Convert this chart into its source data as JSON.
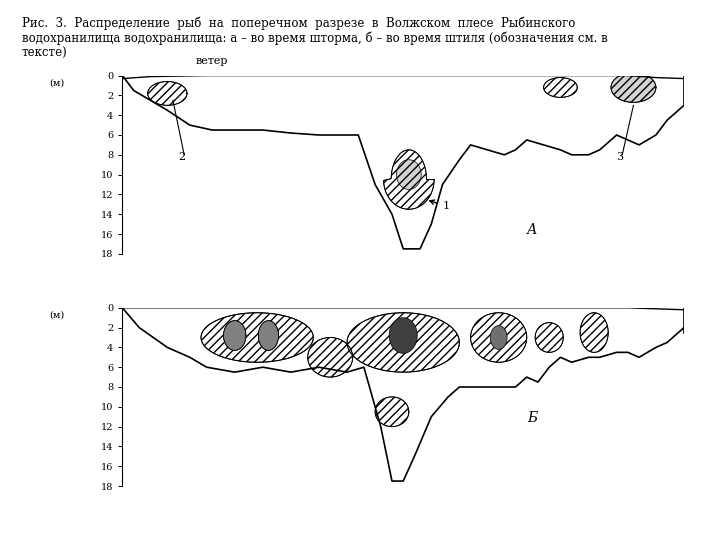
{
  "title_text": "Рис.  3.  Распределение  рыб  на  поперечном  разрезе  в  Волжском  плесе  Рыбинского\nводохранилища водохранилища: а – во время шторма, б – во время штиля (обозначения см. в\nтексте)",
  "background_color": "#ffffff",
  "y_ticks": [
    0,
    2,
    4,
    6,
    8,
    10,
    12,
    14,
    16,
    18
  ],
  "y_label": "(м)",
  "panel_A_label": "А",
  "panel_B_label": "Б",
  "wind_label": "ветер"
}
